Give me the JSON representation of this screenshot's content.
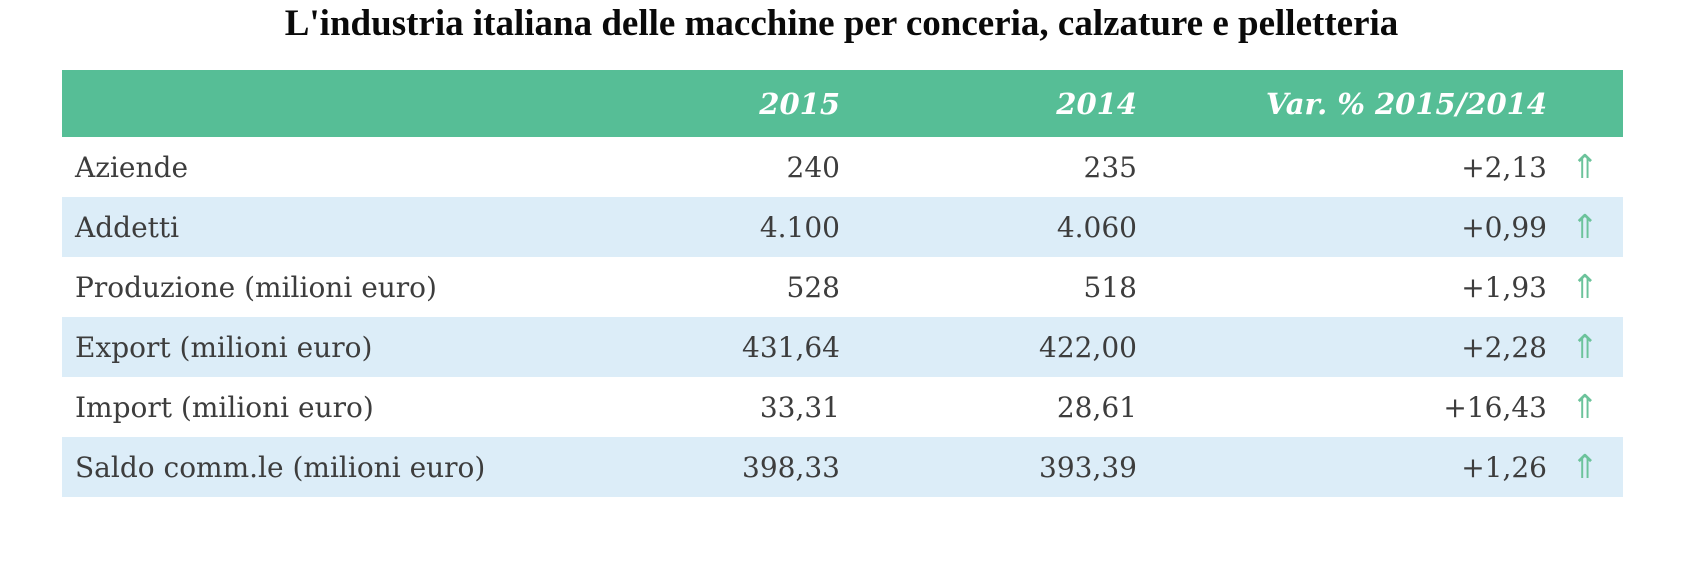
{
  "chart_data": {
    "type": "table",
    "title": "L'industria italiana delle macchine per conceria, calzature e pelletteria",
    "columns": {
      "label": "",
      "y2015": "2015",
      "y2014": "2014",
      "variation": "Var. % 2015/2014"
    },
    "rows": [
      {
        "label": "Aziende",
        "y2015": "240",
        "y2014": "235",
        "variation": "+2,13",
        "trend": "up"
      },
      {
        "label": "Addetti",
        "y2015": "4.100",
        "y2014": "4.060",
        "variation": "+0,99",
        "trend": "up"
      },
      {
        "label": "Produzione (milioni euro)",
        "y2015": "528",
        "y2014": "518",
        "variation": "+1,93",
        "trend": "up"
      },
      {
        "label": "Export (milioni euro)",
        "y2015": "431,64",
        "y2014": "422,00",
        "variation": "+2,28",
        "trend": "up"
      },
      {
        "label": "Import (milioni euro)",
        "y2015": "33,31",
        "y2014": "28,61",
        "variation": "+16,43",
        "trend": "up"
      },
      {
        "label": "Saldo comm.le (milioni euro)",
        "y2015": "398,33",
        "y2014": "393,39",
        "variation": "+1,26",
        "trend": "up"
      }
    ],
    "legend_position": "none",
    "grid": false
  },
  "icons": {
    "up_arrow": "⇑"
  },
  "colors": {
    "header_bg": "#56be96",
    "header_text": "#ffffff",
    "row_alt_bg": "#dcedf8",
    "body_text": "#3d3d3d",
    "title_text": "#0a0a0a",
    "arrow_green": "#6cc39b"
  }
}
